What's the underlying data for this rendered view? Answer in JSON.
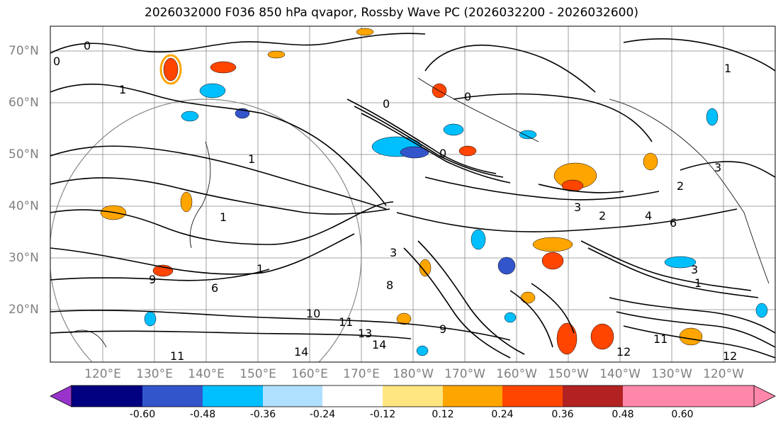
{
  "title": "2026032000 F036 850 hPa qvapor, Rossby Wave PC (2026032200 - 2026032600)",
  "lat_labels": [
    "70°N",
    "60°N",
    "50°N",
    "40°N",
    "30°N",
    "20°N"
  ],
  "lon_labels": [
    "120°E",
    "130°E",
    "140°E",
    "150°E",
    "160°E",
    "170°E",
    "180°W",
    "170°W",
    "160°W",
    "150°W",
    "140°W",
    "130°W",
    "120°W"
  ],
  "colorbar": {
    "ticks": [
      "-0.60",
      "-0.48",
      "-0.36",
      "-0.24",
      "-0.12",
      "0.12",
      "0.24",
      "0.36",
      "0.48",
      "0.60"
    ],
    "colors": [
      "#9933cc",
      "#000080",
      "#3355cc",
      "#00bfff",
      "#b0e0ff",
      "#ffffff",
      "#ffe680",
      "#ffa500",
      "#ff4500",
      "#b22222",
      "#ff88aa",
      "#ff88aa"
    ]
  },
  "contour_labels": [
    "0",
    "1",
    "0",
    "0",
    "0",
    "1",
    "1",
    "0",
    "1",
    "3",
    "2",
    "3",
    "2",
    "4",
    "6",
    "8",
    "3",
    "1",
    "6",
    "9",
    "10",
    "11",
    "13",
    "14",
    "12",
    "11",
    "14",
    "11",
    "12",
    "1",
    "3",
    "9"
  ]
}
